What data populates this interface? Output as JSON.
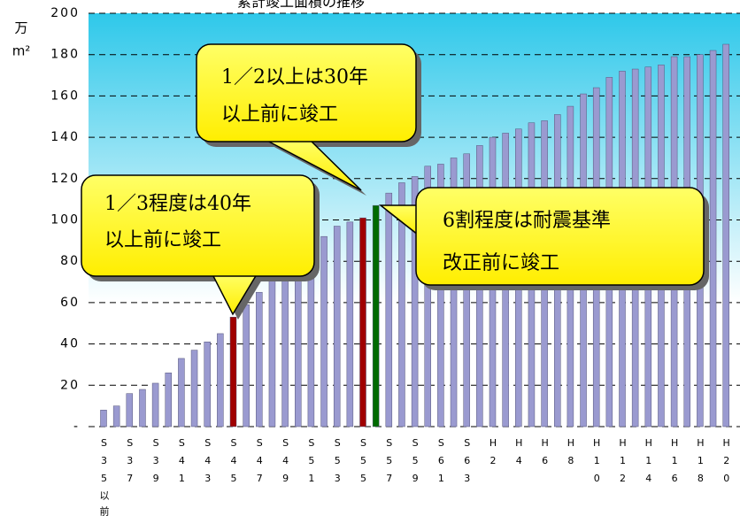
{
  "chart_data": {
    "type": "bar",
    "title": "累計竣工面積の推移",
    "y_label_lines": [
      "万",
      "m²"
    ],
    "categories": [
      "S35以前",
      null,
      "S37",
      null,
      "S39",
      null,
      "S41",
      null,
      "S43",
      null,
      "S45",
      null,
      "S47",
      null,
      "S49",
      null,
      "S51",
      null,
      "S53",
      null,
      "S55",
      null,
      "S57",
      null,
      "S59",
      null,
      "S61",
      null,
      "S63",
      null,
      "H2",
      null,
      "H4",
      null,
      "H6",
      null,
      "H8",
      null,
      "H10",
      null,
      "H12",
      null,
      "H14",
      null,
      "H16",
      null,
      "H18",
      null,
      "H20"
    ],
    "values": [
      8,
      10,
      16,
      18,
      21,
      26,
      33,
      37,
      41,
      45,
      53,
      59,
      65,
      72,
      77,
      81,
      87,
      92,
      97,
      99,
      101,
      107,
      113,
      118,
      121,
      126,
      127,
      130,
      132,
      136,
      140,
      142,
      144,
      147,
      148,
      151,
      155,
      161,
      164,
      169,
      172,
      173,
      174,
      175,
      179,
      179,
      180,
      182,
      185
    ],
    "colors": [
      "#9a9ad0",
      "#9a9ad0",
      "#9a9ad0",
      "#9a9ad0",
      "#9a9ad0",
      "#9a9ad0",
      "#9a9ad0",
      "#9a9ad0",
      "#9a9ad0",
      "#9a9ad0",
      "#a00000",
      "#9a9ad0",
      "#9a9ad0",
      "#9a9ad0",
      "#9a9ad0",
      "#9a9ad0",
      "#9a9ad0",
      "#9a9ad0",
      "#9a9ad0",
      "#9a9ad0",
      "#a00000",
      "#006a00",
      "#9a9ad0",
      "#9a9ad0",
      "#9a9ad0",
      "#9a9ad0",
      "#9a9ad0",
      "#9a9ad0",
      "#9a9ad0",
      "#9a9ad0",
      "#9a9ad0",
      "#9a9ad0",
      "#9a9ad0",
      "#9a9ad0",
      "#9a9ad0",
      "#9a9ad0",
      "#9a9ad0",
      "#9a9ad0",
      "#9a9ad0",
      "#9a9ad0",
      "#9a9ad0",
      "#9a9ad0",
      "#9a9ad0",
      "#9a9ad0",
      "#9a9ad0",
      "#9a9ad0",
      "#9a9ad0",
      "#9a9ad0",
      "#9a9ad0"
    ],
    "ylim": [
      0,
      200
    ],
    "yticks": [
      {
        "value": 0,
        "label": "-"
      },
      20,
      40,
      60,
      80,
      100,
      120,
      140,
      160,
      180,
      200
    ],
    "grid": true,
    "annotations": [
      {
        "lines": [
          "1／2以上は30年",
          "以上前に竣工"
        ]
      },
      {
        "lines": [
          "1／3程度は40年",
          "以上前に竣工"
        ]
      },
      {
        "lines": [
          "6割程度は耐震基準",
          "改正前に竣工"
        ]
      }
    ]
  }
}
